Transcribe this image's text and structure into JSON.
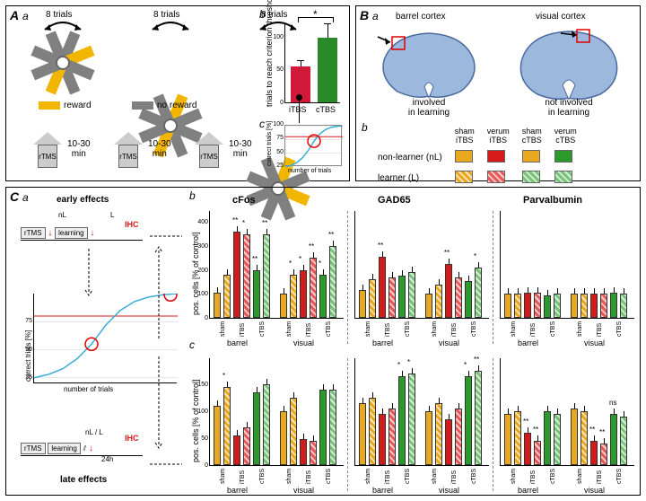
{
  "colors": {
    "yellow_arm": "#f2b600",
    "gray_arm": "#808080",
    "itbs_bar": "#d1193a",
    "ctbs_bar": "#2a8a2a",
    "sham_nl": "#e8a820",
    "sham_l": "#e8a820",
    "itbs_nl": "#d61a1a",
    "itbs_l": "#e85a5a",
    "ctbs_nl": "#2a9a2a",
    "ctbs_l": "#7ac47a",
    "learn_curve": "#3aaed8",
    "threshold": "#d61a1a",
    "brain_fill": "#6a8ec4"
  },
  "panelA": {
    "trials_label": "8 trials",
    "reward_label": "reward",
    "noreward_label": "no reward",
    "time_label": "10-30\nmin",
    "rtms_label": "rTMS",
    "stars": [
      {
        "x": 28,
        "yellow_arms": [
          1,
          4
        ]
      },
      {
        "x": 148,
        "yellow_arms": [
          0,
          4
        ]
      },
      {
        "x": 268,
        "yellow_arms": [
          0,
          2
        ]
      }
    ],
    "arm_angles_deg": [
      22.5,
      67.5,
      112.5,
      157.5,
      202.5,
      247.5,
      292.5,
      337.5
    ]
  },
  "panelAb": {
    "ylabel": "trials to reach criterion\nthreshold [% of control]",
    "ylim": [
      0,
      120
    ],
    "ytick_step": 50,
    "bars": [
      {
        "label": "iTBS",
        "value": 55,
        "err": 8,
        "color": "#d1193a"
      },
      {
        "label": "cTBS",
        "value": 98,
        "err": 20,
        "color": "#2a8a2a"
      }
    ],
    "sig_label": "*"
  },
  "panelAc": {
    "ylabel": "correct trials [%]",
    "xlabel": "number of trials",
    "ylim": [
      25,
      100
    ],
    "yticks": [
      25,
      50,
      75,
      100
    ],
    "threshold": 80,
    "curve": [
      [
        0,
        25
      ],
      [
        10,
        28
      ],
      [
        20,
        33
      ],
      [
        30,
        42
      ],
      [
        40,
        55
      ],
      [
        50,
        72
      ],
      [
        60,
        85
      ],
      [
        70,
        93
      ],
      [
        80,
        97
      ],
      [
        90,
        99
      ],
      [
        100,
        100
      ]
    ]
  },
  "panelB": {
    "barrel_label": "barrel cortex",
    "barrel_sub": "involved\nin learning",
    "visual_label": "visual cortex",
    "visual_sub": "not involved\nin learning",
    "legend_headers": [
      "sham\niTBS",
      "verum\niTBS",
      "sham\ncTBS",
      "verum\ncTBS"
    ],
    "rows": [
      {
        "label": "non-learner (nL)",
        "colors": [
          "#e8a820",
          "#d61a1a",
          "#e8a820",
          "#2a9a2a"
        ],
        "hatched": false
      },
      {
        "label": "learner (L)",
        "colors": [
          "#e8a820",
          "#e85a5a",
          "#7ac47a",
          "#7ac47a"
        ],
        "hatched": true
      }
    ]
  },
  "panelC": {
    "early_label": "early effects",
    "late_label": "late effects",
    "nL_label": "nL",
    "L_label": "L",
    "nLL_label": "nL / L",
    "IHC_label": "IHC",
    "learning_label": "learning",
    "t24h_label": "24h",
    "plot_ylabel": "correct trials [%]",
    "plot_xlabel": "number of trials",
    "plot_yticks": [
      25,
      50,
      75
    ],
    "threshold": 80,
    "curve": [
      [
        0,
        25
      ],
      [
        10,
        28
      ],
      [
        20,
        33
      ],
      [
        30,
        42
      ],
      [
        40,
        55
      ],
      [
        50,
        72
      ],
      [
        60,
        85
      ],
      [
        70,
        93
      ],
      [
        80,
        97
      ],
      [
        90,
        99
      ],
      [
        100,
        100
      ]
    ],
    "circle_points": [
      [
        40,
        55
      ],
      [
        95,
        99
      ]
    ]
  },
  "panelCb": {
    "titles": [
      "cFos",
      "GAD65",
      "Parvalbumin"
    ],
    "ylabel": "pos. cells [% of control]",
    "regions": [
      "barrel",
      "visual"
    ],
    "xlabels": [
      "sham",
      "iTBS",
      "cTBS"
    ],
    "bar_colors": [
      "#e8a820",
      "#e8a820",
      "#d61a1a",
      "#e85a5a",
      "#2a9a2a",
      "#7ac47a"
    ],
    "hatched": [
      false,
      true,
      false,
      true,
      false,
      true
    ],
    "early": {
      "ylim": [
        0,
        450
      ],
      "yticks": [
        0,
        100,
        200,
        300,
        400
      ],
      "data": {
        "cFos": {
          "barrel": [
            105,
            180,
            360,
            350,
            200,
            350
          ],
          "barrel_sig": [
            "",
            "",
            "**",
            "*",
            "**",
            "**"
          ],
          "visual": [
            100,
            180,
            200,
            250,
            180,
            300
          ],
          "visual_sig": [
            "",
            "*",
            "*",
            "**",
            "*",
            "**"
          ]
        },
        "GAD65": {
          "barrel": [
            115,
            160,
            255,
            170,
            175,
            190
          ],
          "barrel_sig": [
            "",
            "",
            "**",
            "",
            "",
            ""
          ],
          "visual": [
            100,
            140,
            225,
            170,
            155,
            210
          ],
          "visual_sig": [
            "",
            "",
            "**",
            "",
            "",
            "*"
          ]
        },
        "Parvalbumin": {
          "barrel": [
            100,
            100,
            105,
            105,
            95,
            100
          ],
          "barrel_sig": [
            "",
            "",
            "",
            "",
            "",
            ""
          ],
          "visual": [
            100,
            100,
            100,
            102,
            105,
            100
          ],
          "visual_sig": [
            "",
            "",
            "",
            "",
            "",
            ""
          ]
        }
      }
    },
    "late": {
      "ylim": [
        0,
        200
      ],
      "yticks": [
        0,
        50,
        100,
        150
      ],
      "data": {
        "cFos": {
          "barrel": [
            110,
            145,
            55,
            70,
            135,
            150
          ],
          "barrel_sig": [
            "",
            "*",
            "",
            "",
            "",
            ""
          ],
          "visual": [
            100,
            125,
            48,
            45,
            140,
            140
          ],
          "visual_sig": [
            "",
            "",
            "",
            "",
            "",
            ""
          ]
        },
        "GAD65": {
          "barrel": [
            115,
            125,
            95,
            105,
            165,
            170
          ],
          "barrel_sig": [
            "",
            "",
            "",
            "",
            "*",
            "*"
          ],
          "visual": [
            100,
            115,
            85,
            105,
            165,
            175
          ],
          "visual_sig": [
            "",
            "",
            "",
            "",
            "*",
            "**"
          ]
        },
        "Parvalbumin": {
          "barrel": [
            95,
            100,
            60,
            45,
            100,
            95
          ],
          "barrel_sig": [
            "",
            "",
            "**",
            "**",
            "",
            ""
          ],
          "visual": [
            105,
            100,
            45,
            40,
            95,
            90
          ],
          "visual_sig": [
            "",
            "",
            "**",
            "**",
            "ns",
            ""
          ]
        }
      }
    }
  }
}
